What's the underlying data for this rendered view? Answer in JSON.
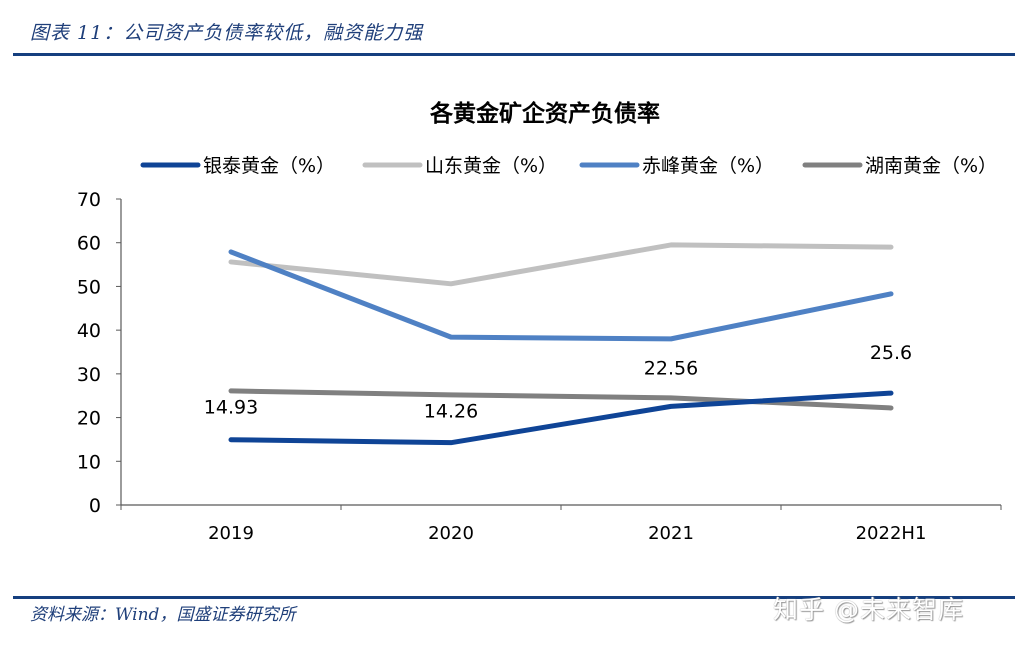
{
  "figure": {
    "caption": "图表 11：公司资产负债率较低，融资能力强",
    "source": "资料来源：Wind，国盛证券研究所",
    "watermark": "知乎 @未来智库"
  },
  "chart_data": {
    "type": "line",
    "title": "各黄金矿企资产负债率",
    "xlabel": "",
    "ylabel": "",
    "categories": [
      "2019",
      "2020",
      "2021",
      "2022H1"
    ],
    "ylim": [
      0,
      70
    ],
    "yticks": [
      0,
      10,
      20,
      30,
      40,
      50,
      60,
      70
    ],
    "grid": false,
    "legend_position": "top",
    "series": [
      {
        "name": "银泰黄金（%）",
        "color": "#0f4496",
        "values": [
          14.93,
          14.26,
          22.56,
          25.6
        ],
        "data_labels": [
          "14.93",
          "14.26",
          "22.56",
          "25.6"
        ]
      },
      {
        "name": "山东黄金（%）",
        "color": "#c0c0c0",
        "values": [
          55.6,
          50.6,
          59.5,
          59.0
        ],
        "data_labels": null
      },
      {
        "name": "赤峰黄金（%）",
        "color": "#4f81c4",
        "values": [
          57.9,
          38.4,
          38.0,
          48.3
        ],
        "data_labels": null
      },
      {
        "name": "湖南黄金（%）",
        "color": "#808080",
        "values": [
          26.1,
          25.2,
          24.5,
          22.2
        ],
        "data_labels": null
      }
    ]
  }
}
